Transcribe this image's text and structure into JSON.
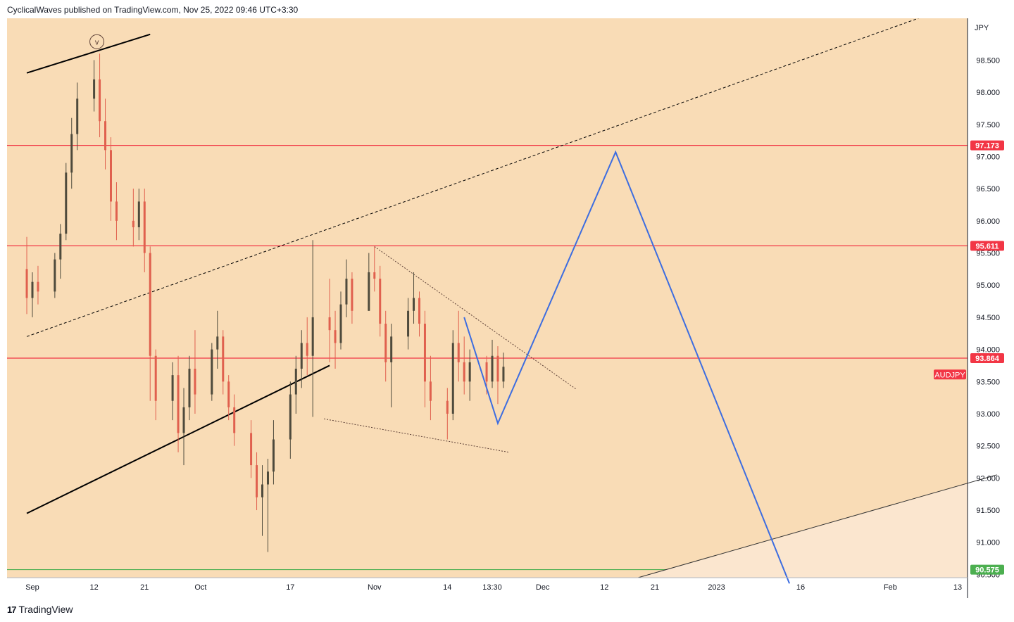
{
  "header": {
    "publisher": "CyclicalWaves published on TradingView.com, Nov 25, 2022 09:46 UTC+3:30"
  },
  "footer": {
    "brand_mark": "17",
    "brand": "TradingView"
  },
  "chart_data": {
    "type": "candlestick",
    "symbol": "AUDJPY",
    "currency": "JPY",
    "y_ticks": [
      98.5,
      98.0,
      97.5,
      97.0,
      96.5,
      96.0,
      95.5,
      95.0,
      94.5,
      94.0,
      93.5,
      93.0,
      92.5,
      92.0,
      91.5,
      91.0,
      90.5
    ],
    "y_tick_labels": [
      "98.500",
      "98.000",
      "97.500",
      "97.000",
      "96.500",
      "96.000",
      "95.500",
      "95.000",
      "94.500",
      "94.000",
      "93.500",
      "93.000",
      "92.500",
      "92.000",
      "91.500",
      "91.000",
      "90.500"
    ],
    "ylim": [
      90.45,
      99.15
    ],
    "x_tick_labels": [
      "Sep",
      "12",
      "21",
      "Oct",
      "17",
      "Nov",
      "14",
      "13:30",
      "Dec",
      "12",
      "21",
      "2023",
      "16",
      "Feb",
      "13"
    ],
    "x_tick_dates": [
      "2022-09-01",
      "2022-09-12",
      "2022-09-21",
      "2022-10-01",
      "2022-10-17",
      "2022-11-01",
      "2022-11-14",
      "2022-11-22",
      "2022-12-01",
      "2022-12-12",
      "2022-12-21",
      "2023-01-01",
      "2023-01-16",
      "2023-02-01",
      "2023-02-13"
    ],
    "horizontal_levels": [
      {
        "value": 97.173,
        "label": "97.173",
        "color": "#f23645"
      },
      {
        "value": 95.611,
        "label": "95.611",
        "color": "#f23645"
      },
      {
        "value": 93.864,
        "label": "93.864",
        "color": "#f23645"
      },
      {
        "value": 90.575,
        "label": "90.575",
        "color": "#4caf50"
      }
    ],
    "symbol_tag": {
      "label": "AUDJPY",
      "value": 93.73,
      "color": "#f23645"
    },
    "wave_label": "v",
    "projection": {
      "color": "#3d6de0",
      "points": [
        [
          "2022-11-17",
          94.5
        ],
        [
          "2022-11-23",
          92.85
        ],
        [
          "2022-12-14",
          97.07
        ],
        [
          "2023-01-14",
          90.36
        ]
      ]
    },
    "trendlines": [
      {
        "name": "upper-channel",
        "style": "solid",
        "color": "#000000",
        "from": [
          "2022-08-31",
          98.3
        ],
        "to": [
          "2022-09-22",
          98.9
        ]
      },
      {
        "name": "lower-channel",
        "style": "solid",
        "color": "#000000",
        "from": [
          "2022-08-31",
          91.45
        ],
        "to": [
          "2022-10-24",
          93.75
        ]
      },
      {
        "name": "mid-channel",
        "style": "dashed",
        "color": "#000000",
        "from": [
          "2022-08-31",
          94.2
        ],
        "to": [
          "2023-02-06",
          99.15
        ]
      },
      {
        "name": "wedge-top",
        "style": "dotted",
        "color": "#5d4037",
        "from": [
          "2022-11-01",
          95.6
        ],
        "to": [
          "2022-12-07",
          93.38
        ]
      },
      {
        "name": "wedge-bottom",
        "style": "dotted",
        "color": "#5d4037",
        "from": [
          "2022-10-23",
          92.92
        ],
        "to": [
          "2022-11-25",
          92.4
        ]
      },
      {
        "name": "lower-rising",
        "style": "solid",
        "color": "#333333",
        "from": [
          "2022-12-18",
          90.45
        ],
        "to": [
          "2023-02-20",
          92.05
        ]
      }
    ],
    "candles": [
      [
        "2022-08-31",
        95.25,
        95.75,
        94.55,
        94.8
      ],
      [
        "2022-09-01",
        94.8,
        95.2,
        94.5,
        95.05
      ],
      [
        "2022-09-02",
        95.05,
        95.3,
        94.7,
        94.9
      ],
      [
        "2022-09-05",
        94.9,
        95.5,
        94.8,
        95.4
      ],
      [
        "2022-09-06",
        95.4,
        95.95,
        95.1,
        95.8
      ],
      [
        "2022-09-07",
        95.8,
        96.9,
        95.7,
        96.75
      ],
      [
        "2022-09-08",
        96.75,
        97.6,
        96.5,
        97.35
      ],
      [
        "2022-09-09",
        97.35,
        98.15,
        97.1,
        97.9
      ],
      [
        "2022-09-12",
        97.9,
        98.5,
        97.7,
        98.2
      ],
      [
        "2022-09-13",
        98.2,
        98.6,
        97.3,
        97.55
      ],
      [
        "2022-09-14",
        97.55,
        97.9,
        96.8,
        97.1
      ],
      [
        "2022-09-15",
        97.1,
        97.3,
        96.0,
        96.3
      ],
      [
        "2022-09-16",
        96.3,
        96.6,
        95.7,
        96.0
      ],
      [
        "2022-09-19",
        96.0,
        96.5,
        95.6,
        95.9
      ],
      [
        "2022-09-20",
        95.9,
        96.5,
        95.7,
        96.3
      ],
      [
        "2022-09-21",
        96.3,
        96.5,
        95.2,
        95.5
      ],
      [
        "2022-09-22",
        95.5,
        95.6,
        93.2,
        93.9
      ],
      [
        "2022-09-23",
        93.9,
        94.0,
        92.9,
        93.2
      ],
      [
        "2022-09-26",
        93.2,
        93.8,
        92.9,
        93.6
      ],
      [
        "2022-09-27",
        93.6,
        93.9,
        92.4,
        92.7
      ],
      [
        "2022-09-28",
        92.7,
        93.4,
        92.2,
        93.1
      ],
      [
        "2022-09-29",
        93.1,
        93.9,
        92.9,
        93.7
      ],
      [
        "2022-09-30",
        93.7,
        94.3,
        93.0,
        93.3
      ],
      [
        "2022-10-03",
        93.3,
        94.1,
        93.2,
        94.0
      ],
      [
        "2022-10-04",
        94.0,
        94.6,
        93.7,
        94.2
      ],
      [
        "2022-10-05",
        94.2,
        94.3,
        93.3,
        93.5
      ],
      [
        "2022-10-06",
        93.5,
        93.6,
        92.9,
        93.1
      ],
      [
        "2022-10-07",
        93.1,
        93.3,
        92.5,
        92.7
      ],
      [
        "2022-10-10",
        92.7,
        92.9,
        92.0,
        92.2
      ],
      [
        "2022-10-11",
        92.2,
        92.4,
        91.5,
        91.7
      ],
      [
        "2022-10-12",
        91.7,
        92.2,
        91.1,
        91.9
      ],
      [
        "2022-10-13",
        91.9,
        92.3,
        90.85,
        92.1
      ],
      [
        "2022-10-14",
        92.1,
        92.9,
        91.9,
        92.6
      ],
      [
        "2022-10-17",
        92.6,
        93.5,
        92.3,
        93.3
      ],
      [
        "2022-10-18",
        93.3,
        93.9,
        93.0,
        93.7
      ],
      [
        "2022-10-19",
        93.7,
        94.3,
        93.4,
        94.1
      ],
      [
        "2022-10-20",
        94.1,
        94.5,
        93.6,
        93.9
      ],
      [
        "2022-10-21",
        93.9,
        95.7,
        92.95,
        94.5
      ],
      [
        "2022-10-24",
        94.5,
        95.1,
        93.8,
        94.3
      ],
      [
        "2022-10-25",
        94.3,
        94.6,
        93.7,
        94.1
      ],
      [
        "2022-10-26",
        94.1,
        94.9,
        94.0,
        94.7
      ],
      [
        "2022-10-27",
        94.7,
        95.4,
        94.5,
        95.1
      ],
      [
        "2022-10-28",
        95.1,
        95.2,
        94.4,
        94.6
      ],
      [
        "2022-10-31",
        94.6,
        95.5,
        94.6,
        95.2
      ],
      [
        "2022-11-01",
        95.2,
        95.6,
        94.9,
        95.1
      ],
      [
        "2022-11-02",
        95.1,
        95.3,
        94.2,
        94.4
      ],
      [
        "2022-11-03",
        94.4,
        94.6,
        93.5,
        93.8
      ],
      [
        "2022-11-04",
        93.8,
        94.4,
        93.1,
        94.2
      ],
      [
        "2022-11-07",
        94.2,
        94.8,
        94.0,
        94.6
      ],
      [
        "2022-11-08",
        94.6,
        95.2,
        94.4,
        94.8
      ],
      [
        "2022-11-09",
        94.8,
        94.9,
        94.2,
        94.4
      ],
      [
        "2022-11-10",
        94.4,
        94.6,
        93.1,
        93.5
      ],
      [
        "2022-11-11",
        93.5,
        93.9,
        92.9,
        93.2
      ],
      [
        "2022-11-14",
        93.2,
        93.4,
        92.6,
        93.0
      ],
      [
        "2022-11-15",
        93.0,
        94.3,
        92.9,
        94.1
      ],
      [
        "2022-11-16",
        94.1,
        94.6,
        93.5,
        93.8
      ],
      [
        "2022-11-17",
        93.8,
        94.2,
        93.3,
        93.5
      ],
      [
        "2022-11-18",
        93.5,
        94.0,
        93.2,
        93.8
      ],
      [
        "2022-11-21",
        93.8,
        93.9,
        93.3,
        93.5
      ],
      [
        "2022-11-22",
        93.5,
        94.15,
        93.4,
        93.9
      ],
      [
        "2022-11-23",
        93.9,
        94.05,
        93.15,
        93.5
      ],
      [
        "2022-11-24",
        93.5,
        93.95,
        93.4,
        93.73
      ]
    ]
  }
}
